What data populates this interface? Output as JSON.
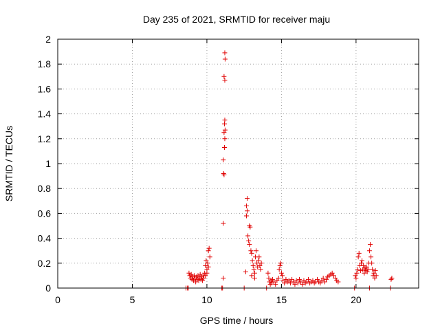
{
  "chart_data": {
    "type": "scatter",
    "title": "Day 235 of 2021, SRMTID for receiver maju",
    "xlabel": "GPS time / hours",
    "ylabel": "SRMTID / TECUs",
    "xlim": [
      0,
      24.2
    ],
    "ylim": [
      0,
      2
    ],
    "xticks": [
      0,
      5,
      10,
      15,
      20
    ],
    "xtick_labels": [
      "0",
      "5",
      "10",
      "15",
      "20"
    ],
    "yticks": [
      0,
      0.2,
      0.4,
      0.6,
      0.8,
      1,
      1.2,
      1.4,
      1.6,
      1.8,
      2
    ],
    "ytick_labels": [
      "0",
      "0.2",
      "0.4",
      "0.6",
      "0.8",
      "1",
      "1.2",
      "1.4",
      "1.6",
      "1.8",
      "2"
    ],
    "grid": true,
    "marker": "+",
    "color": "#e00000",
    "series": [
      {
        "name": "maju",
        "points": [
          [
            8.6,
            0.0
          ],
          [
            8.7,
            0.0
          ],
          [
            8.75,
            0.0
          ],
          [
            8.8,
            0.12
          ],
          [
            8.85,
            0.1
          ],
          [
            8.9,
            0.08
          ],
          [
            8.95,
            0.11
          ],
          [
            9.0,
            0.07
          ],
          [
            9.05,
            0.09
          ],
          [
            9.1,
            0.06
          ],
          [
            9.15,
            0.1
          ],
          [
            9.2,
            0.08
          ],
          [
            9.25,
            0.05
          ],
          [
            9.3,
            0.09
          ],
          [
            9.35,
            0.07
          ],
          [
            9.4,
            0.1
          ],
          [
            9.45,
            0.06
          ],
          [
            9.5,
            0.08
          ],
          [
            9.55,
            0.11
          ],
          [
            9.6,
            0.07
          ],
          [
            9.65,
            0.09
          ],
          [
            9.7,
            0.06
          ],
          [
            9.75,
            0.1
          ],
          [
            9.8,
            0.08
          ],
          [
            9.85,
            0.12
          ],
          [
            9.9,
            0.18
          ],
          [
            9.95,
            0.22
          ],
          [
            10.0,
            0.15
          ],
          [
            10.05,
            0.2
          ],
          [
            10.1,
            0.3
          ],
          [
            10.15,
            0.32
          ],
          [
            10.2,
            0.25
          ],
          [
            10.1,
            0.17
          ],
          [
            10.0,
            0.12
          ],
          [
            9.9,
            0.1
          ],
          [
            11.0,
            0.0
          ],
          [
            11.05,
            0.0
          ],
          [
            11.1,
            0.08
          ],
          [
            11.1,
            0.52
          ],
          [
            11.12,
            0.92
          ],
          [
            11.15,
            0.91
          ],
          [
            11.1,
            1.03
          ],
          [
            11.18,
            1.13
          ],
          [
            11.2,
            1.2
          ],
          [
            11.15,
            1.25
          ],
          [
            11.22,
            1.27
          ],
          [
            11.18,
            1.32
          ],
          [
            11.2,
            1.35
          ],
          [
            11.15,
            1.7
          ],
          [
            11.2,
            1.67
          ],
          [
            11.22,
            1.84
          ],
          [
            11.2,
            1.89
          ],
          [
            12.5,
            0.0
          ],
          [
            12.6,
            0.13
          ],
          [
            12.65,
            0.58
          ],
          [
            12.7,
            0.62
          ],
          [
            12.65,
            0.66
          ],
          [
            12.7,
            0.72
          ],
          [
            12.75,
            0.42
          ],
          [
            12.8,
            0.38
          ],
          [
            12.85,
            0.5
          ],
          [
            12.9,
            0.49
          ],
          [
            12.85,
            0.35
          ],
          [
            12.95,
            0.3
          ],
          [
            13.0,
            0.28
          ],
          [
            13.05,
            0.22
          ],
          [
            13.1,
            0.18
          ],
          [
            13.15,
            0.15
          ],
          [
            13.2,
            0.12
          ],
          [
            13.25,
            0.25
          ],
          [
            13.3,
            0.3
          ],
          [
            13.35,
            0.2
          ],
          [
            13.4,
            0.17
          ],
          [
            13.45,
            0.22
          ],
          [
            13.5,
            0.25
          ],
          [
            13.55,
            0.18
          ],
          [
            13.6,
            0.15
          ],
          [
            13.65,
            0.2
          ],
          [
            13.0,
            0.1
          ],
          [
            13.2,
            0.08
          ],
          [
            14.0,
            0.0
          ],
          [
            14.1,
            0.12
          ],
          [
            14.15,
            0.08
          ],
          [
            14.2,
            0.05
          ],
          [
            14.25,
            0.03
          ],
          [
            14.3,
            0.06
          ],
          [
            14.35,
            0.04
          ],
          [
            14.4,
            0.07
          ],
          [
            14.5,
            0.05
          ],
          [
            14.6,
            0.03
          ],
          [
            14.7,
            0.06
          ],
          [
            14.8,
            0.08
          ],
          [
            14.85,
            0.15
          ],
          [
            14.9,
            0.18
          ],
          [
            14.95,
            0.2
          ],
          [
            15.0,
            0.12
          ],
          [
            15.05,
            0.1
          ],
          [
            15.1,
            0.06
          ],
          [
            15.2,
            0.04
          ],
          [
            15.3,
            0.07
          ],
          [
            15.4,
            0.05
          ],
          [
            15.5,
            0.06
          ],
          [
            15.6,
            0.04
          ],
          [
            15.7,
            0.07
          ],
          [
            15.8,
            0.05
          ],
          [
            15.9,
            0.03
          ],
          [
            16.0,
            0.06
          ],
          [
            16.1,
            0.04
          ],
          [
            16.2,
            0.07
          ],
          [
            16.3,
            0.05
          ],
          [
            16.4,
            0.03
          ],
          [
            16.5,
            0.06
          ],
          [
            16.6,
            0.04
          ],
          [
            16.7,
            0.05
          ],
          [
            16.8,
            0.07
          ],
          [
            16.9,
            0.04
          ],
          [
            17.0,
            0.05
          ],
          [
            17.1,
            0.06
          ],
          [
            17.2,
            0.04
          ],
          [
            17.3,
            0.05
          ],
          [
            17.4,
            0.07
          ],
          [
            17.5,
            0.05
          ],
          [
            17.6,
            0.04
          ],
          [
            17.7,
            0.06
          ],
          [
            17.8,
            0.08
          ],
          [
            17.9,
            0.05
          ],
          [
            18.0,
            0.07
          ],
          [
            18.1,
            0.09
          ],
          [
            18.2,
            0.1
          ],
          [
            18.3,
            0.11
          ],
          [
            18.4,
            0.12
          ],
          [
            18.5,
            0.1
          ],
          [
            18.6,
            0.08
          ],
          [
            18.7,
            0.06
          ],
          [
            18.8,
            0.05
          ],
          [
            19.9,
            0.0
          ],
          [
            19.95,
            0.1
          ],
          [
            20.0,
            0.08
          ],
          [
            20.05,
            0.12
          ],
          [
            20.1,
            0.15
          ],
          [
            20.15,
            0.25
          ],
          [
            20.2,
            0.28
          ],
          [
            20.25,
            0.18
          ],
          [
            20.3,
            0.14
          ],
          [
            20.35,
            0.2
          ],
          [
            20.4,
            0.22
          ],
          [
            20.45,
            0.15
          ],
          [
            20.5,
            0.18
          ],
          [
            20.55,
            0.12
          ],
          [
            20.6,
            0.16
          ],
          [
            20.65,
            0.14
          ],
          [
            20.7,
            0.17
          ],
          [
            20.75,
            0.13
          ],
          [
            20.8,
            0.15
          ],
          [
            20.85,
            0.2
          ],
          [
            20.9,
            0.3
          ],
          [
            20.95,
            0.35
          ],
          [
            21.0,
            0.25
          ],
          [
            21.05,
            0.2
          ],
          [
            21.1,
            0.15
          ],
          [
            21.15,
            0.1
          ],
          [
            21.2,
            0.12
          ],
          [
            21.25,
            0.08
          ],
          [
            21.3,
            0.14
          ],
          [
            21.35,
            0.1
          ],
          [
            20.9,
            0.0
          ],
          [
            22.3,
            0.0
          ],
          [
            22.4,
            0.08
          ],
          [
            22.35,
            0.07
          ]
        ]
      }
    ]
  }
}
